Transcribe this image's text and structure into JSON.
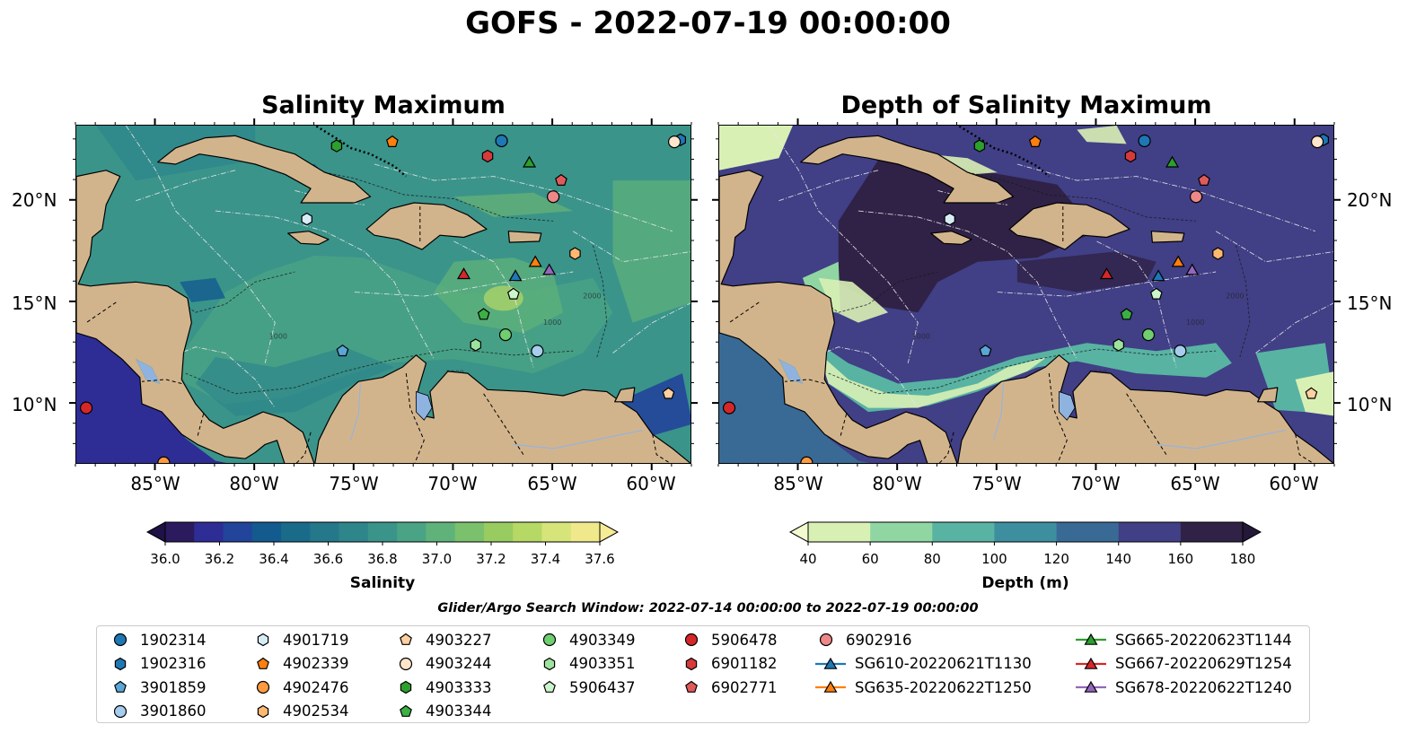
{
  "figure": {
    "title": "GOFS - 2022-07-19 00:00:00",
    "search_window": "Glider/Argo Search Window: 2022-07-14 00:00:00 to 2022-07-19 00:00:00"
  },
  "panels": [
    {
      "title": "Salinity Maximum",
      "colorbar_label": "Salinity",
      "colorbar_ticks": [
        "36.0",
        "36.2",
        "36.4",
        "36.6",
        "36.8",
        "37.0",
        "37.2",
        "37.4",
        "37.6"
      ],
      "colors": [
        "#2b1a5e",
        "#2e2d96",
        "#22449a",
        "#135a8f",
        "#1a6b8a",
        "#24788a",
        "#2e868a",
        "#3a948a",
        "#4aa384",
        "#5fb27a",
        "#7bc06c",
        "#98cc60",
        "#b6d966",
        "#d6e47a",
        "#efe98c"
      ]
    },
    {
      "title": "Depth of Salinity Maximum",
      "colorbar_label": "Depth (m)",
      "colorbar_ticks": [
        "40",
        "60",
        "80",
        "100",
        "120",
        "140",
        "160",
        "180"
      ],
      "colors": [
        "#d9f0b5",
        "#8fd6a3",
        "#58b3a3",
        "#3d8fa0",
        "#396a96",
        "#413f86",
        "#2f2246"
      ]
    }
  ],
  "map": {
    "lat_ticks": [
      "20°N",
      "15°N",
      "10°N"
    ],
    "lon_ticks": [
      "85°W",
      "80°W",
      "75°W",
      "70°W",
      "65°W",
      "60°W"
    ],
    "contour_labels": [
      "1000",
      "1000",
      "2000",
      "2000"
    ],
    "colors": {
      "land": "#d2b48c",
      "lake": "#8fb3e0",
      "border": "#000000",
      "eez": "#e8e8e8"
    }
  },
  "legend": {
    "items": [
      {
        "label": "1902314",
        "shape": "circle",
        "color": "#1f77b4",
        "line": false
      },
      {
        "label": "1902316",
        "shape": "hexagon",
        "color": "#1f77b4",
        "line": false
      },
      {
        "label": "3901859",
        "shape": "pentagon",
        "color": "#5aa6d6",
        "line": false
      },
      {
        "label": "3901860",
        "shape": "circle",
        "color": "#a6cdee",
        "line": false
      },
      {
        "label": "4901719",
        "shape": "hexagon",
        "color": "#d8ecf8",
        "line": false
      },
      {
        "label": "4902339",
        "shape": "pentagon",
        "color": "#ff7f0e",
        "line": false
      },
      {
        "label": "4902476",
        "shape": "circle",
        "color": "#ff9a40",
        "line": false
      },
      {
        "label": "4902534",
        "shape": "hexagon",
        "color": "#ffb870",
        "line": false
      },
      {
        "label": "4903227",
        "shape": "pentagon",
        "color": "#ffd0a0",
        "line": false
      },
      {
        "label": "4903244",
        "shape": "circle",
        "color": "#ffe5cc",
        "line": false
      },
      {
        "label": "4903333",
        "shape": "hexagon",
        "color": "#2ca02c",
        "line": false
      },
      {
        "label": "4903344",
        "shape": "pentagon",
        "color": "#3cb043",
        "line": false
      },
      {
        "label": "4903349",
        "shape": "circle",
        "color": "#6fce6f",
        "line": false
      },
      {
        "label": "4903351",
        "shape": "hexagon",
        "color": "#9de29d",
        "line": false
      },
      {
        "label": "5906437",
        "shape": "pentagon",
        "color": "#ccf5cc",
        "line": false
      },
      {
        "label": "5906478",
        "shape": "circle",
        "color": "#d62728",
        "line": false
      },
      {
        "label": "6901182",
        "shape": "hexagon",
        "color": "#d63a3a",
        "line": false
      },
      {
        "label": "6902771",
        "shape": "pentagon",
        "color": "#e05a5a",
        "line": false
      },
      {
        "label": "6902916",
        "shape": "circle",
        "color": "#ee8888",
        "line": false
      },
      {
        "label": "SG610-20220621T1130",
        "shape": "triangle",
        "color": "#1f77b4",
        "line": true
      },
      {
        "label": "SG635-20220622T1250",
        "shape": "triangle",
        "color": "#ff7f0e",
        "line": true
      },
      {
        "label": "SG665-20220623T1144",
        "shape": "triangle",
        "color": "#2ca02c",
        "line": true
      },
      {
        "label": "SG667-20220629T1254",
        "shape": "triangle",
        "color": "#d62728",
        "line": true
      },
      {
        "label": "SG678-20220622T1240",
        "shape": "triangle",
        "color": "#9467bd",
        "line": true
      }
    ]
  },
  "markers": [
    {
      "id": "1902314",
      "lon": -67.6,
      "lat": 22.95
    },
    {
      "id": "1902316",
      "lon": -58.6,
      "lat": 23.0
    },
    {
      "id": "3901859",
      "lon": -75.6,
      "lat": 12.6
    },
    {
      "id": "3901860",
      "lon": -65.8,
      "lat": 12.6
    },
    {
      "id": "4901719",
      "lon": -77.4,
      "lat": 19.1
    },
    {
      "id": "4902339",
      "lon": -73.1,
      "lat": 22.9
    },
    {
      "id": "4902476",
      "lon": -84.6,
      "lat": 7.1
    },
    {
      "id": "4902534",
      "lon": -63.9,
      "lat": 17.4
    },
    {
      "id": "4903227",
      "lon": -59.2,
      "lat": 10.5
    },
    {
      "id": "4903244",
      "lon": -58.9,
      "lat": 22.9
    },
    {
      "id": "4903333",
      "lon": -75.9,
      "lat": 22.7
    },
    {
      "id": "4903344",
      "lon": -68.5,
      "lat": 14.4
    },
    {
      "id": "4903349",
      "lon": -67.4,
      "lat": 13.4
    },
    {
      "id": "4903351",
      "lon": -68.9,
      "lat": 12.9
    },
    {
      "id": "5906437",
      "lon": -67.0,
      "lat": 15.4
    },
    {
      "id": "5906478",
      "lon": -88.5,
      "lat": 9.8
    },
    {
      "id": "6901182",
      "lon": -68.3,
      "lat": 22.2
    },
    {
      "id": "6902771",
      "lon": -64.6,
      "lat": 21.0
    },
    {
      "id": "6902916",
      "lon": -65.0,
      "lat": 20.2
    },
    {
      "id": "SG610-20220621T1130",
      "lon": -66.9,
      "lat": 16.3
    },
    {
      "id": "SG635-20220622T1250",
      "lon": -65.9,
      "lat": 17.0
    },
    {
      "id": "SG665-20220623T1144",
      "lon": -66.2,
      "lat": 21.9
    },
    {
      "id": "SG667-20220629T1254",
      "lon": -69.5,
      "lat": 16.4
    },
    {
      "id": "SG678-20220622T1240",
      "lon": -65.2,
      "lat": 16.6
    }
  ]
}
